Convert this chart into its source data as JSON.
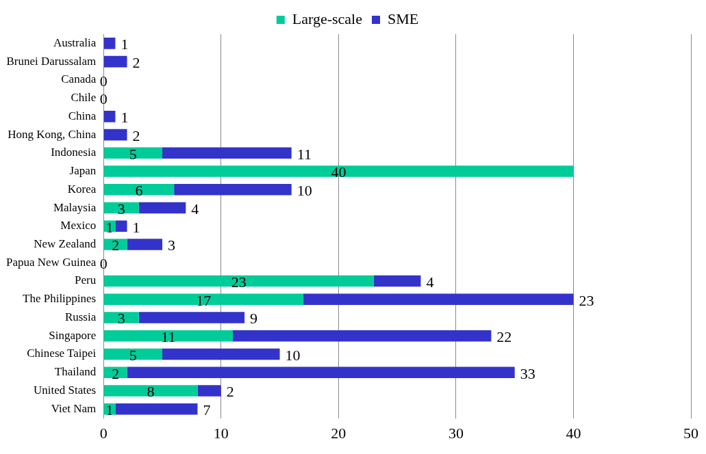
{
  "chart_data": {
    "type": "bar",
    "orientation": "horizontal",
    "stacked": true,
    "categories": [
      "Australia",
      "Brunei Darussalam",
      "Canada",
      "Chile",
      "China",
      "Hong Kong, China",
      "Indonesia",
      "Japan",
      "Korea",
      "Malaysia",
      "Mexico",
      "New Zealand",
      "Papua New Guinea",
      "Peru",
      "The Philippines",
      "Russia",
      "Singapore",
      "Chinese Taipei",
      "Thailand",
      "United States",
      "Viet Nam"
    ],
    "series": [
      {
        "name": "Large-scale",
        "color": "#00cc99",
        "values": [
          0,
          0,
          0,
          0,
          0,
          0,
          5,
          40,
          6,
          3,
          1,
          2,
          0,
          23,
          17,
          3,
          11,
          5,
          2,
          8,
          1
        ],
        "value_labels": [
          null,
          null,
          "0",
          "0",
          null,
          null,
          "5",
          "40",
          "6",
          "3",
          "1",
          "2",
          "0",
          "23",
          "17",
          "3",
          "11",
          "5",
          "2",
          "8",
          "1"
        ]
      },
      {
        "name": "SME",
        "color": "#3333cc",
        "values": [
          1,
          2,
          0,
          0,
          1,
          2,
          11,
          0,
          10,
          4,
          1,
          3,
          0,
          4,
          23,
          9,
          22,
          10,
          33,
          2,
          7
        ],
        "value_labels": [
          "1",
          "2",
          null,
          null,
          "1",
          "2",
          "11",
          null,
          "10",
          "4",
          "1",
          "3",
          null,
          "4",
          "23",
          "9",
          "22",
          "10",
          "33",
          "2",
          "7"
        ]
      }
    ],
    "xlim": [
      0,
      50
    ],
    "xticks": [
      0,
      10,
      20,
      30,
      40,
      50
    ],
    "grid": "x",
    "legend": "top"
  }
}
